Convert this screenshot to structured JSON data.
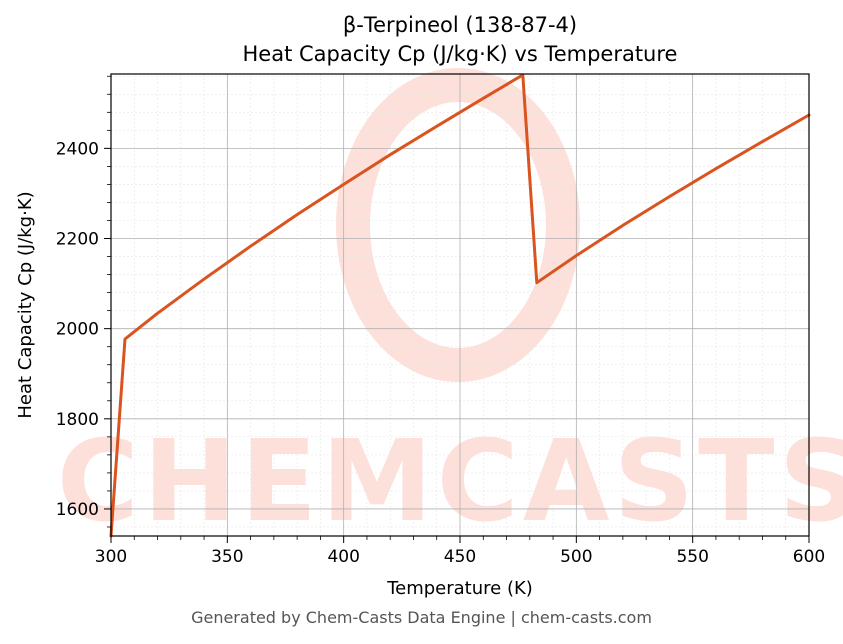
{
  "chart_data": {
    "type": "line",
    "title_line1": "β-Terpineol (138-87-4)",
    "title_line2": "Heat Capacity Cp (J/kg·K) vs Temperature",
    "xlabel": "Temperature (K)",
    "ylabel": "Heat Capacity Cp (J/kg·K)",
    "xlim": [
      300,
      600
    ],
    "ylim": [
      1540,
      2565
    ],
    "xticks": [
      300,
      350,
      400,
      450,
      500,
      550,
      600
    ],
    "yticks": [
      1600,
      1800,
      2000,
      2200,
      2400
    ],
    "grid": true,
    "series": [
      {
        "color": "#d9541e",
        "x": [
          300,
          306,
          320,
          340,
          360,
          380,
          400,
          420,
          440,
          460,
          477,
          483,
          500,
          520,
          540,
          560,
          580,
          600
        ],
        "y": [
          1540,
          1977,
          2034,
          2110,
          2183,
          2253,
          2320,
          2386,
          2449,
          2511,
          2563,
          2102,
          2162,
          2229,
          2293,
          2355,
          2415,
          2474
        ]
      }
    ]
  },
  "watermark": {
    "text": "CHEMCASTS",
    "color": "#fde0da"
  },
  "footer": "Generated by Chem-Casts Data Engine | chem-casts.com"
}
